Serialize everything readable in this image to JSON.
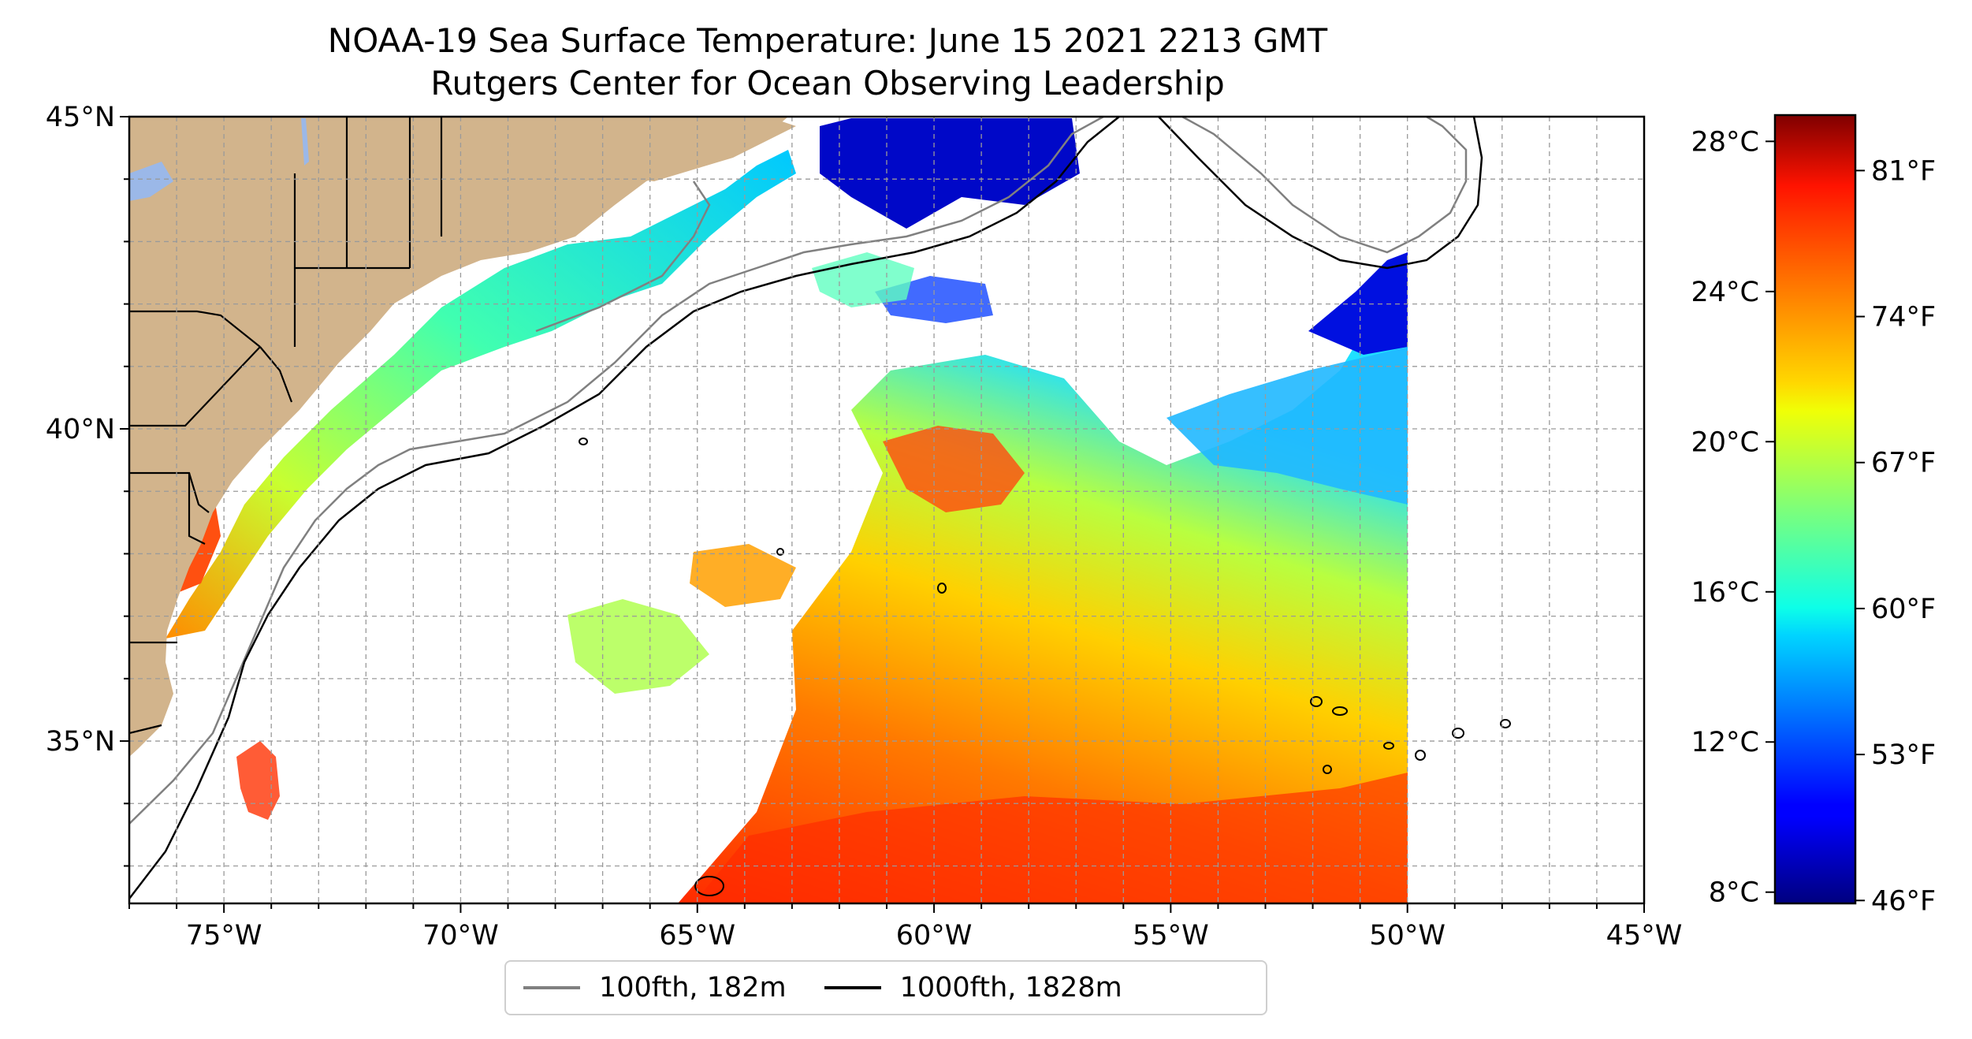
{
  "title": {
    "line1": "NOAA-19 Sea Surface Temperature: June 15 2021 2213 GMT",
    "line2": "Rutgers Center for Ocean Observing Leadership"
  },
  "map": {
    "extent": {
      "lon_min": -77,
      "lon_max": -45,
      "lat_min": 32.4,
      "lat_max": 45
    },
    "x_ticks": [
      {
        "value": -75,
        "label": "75°W"
      },
      {
        "value": -70,
        "label": "70°W"
      },
      {
        "value": -65,
        "label": "65°W"
      },
      {
        "value": -60,
        "label": "60°W"
      },
      {
        "value": -55,
        "label": "55°W"
      },
      {
        "value": -50,
        "label": "50°W"
      },
      {
        "value": -45,
        "label": "45°W"
      }
    ],
    "y_ticks": [
      {
        "value": 45,
        "label": "45°N"
      },
      {
        "value": 40,
        "label": "40°N"
      },
      {
        "value": 35,
        "label": "35°N"
      }
    ],
    "gridlines": true,
    "land_color": "#d2b48c",
    "lake_color": "#9bb8e8"
  },
  "colorbar": {
    "colormap": "jet",
    "celsius_ticks": [
      {
        "value": 28,
        "label": "28°C"
      },
      {
        "value": 24,
        "label": "24°C"
      },
      {
        "value": 20,
        "label": "20°C"
      },
      {
        "value": 16,
        "label": "16°C"
      },
      {
        "value": 12,
        "label": "12°C"
      },
      {
        "value": 8,
        "label": "8°C"
      }
    ],
    "fahrenheit_ticks": [
      {
        "value": 81,
        "label": "81°F"
      },
      {
        "value": 74,
        "label": "74°F"
      },
      {
        "value": 67,
        "label": "67°F"
      },
      {
        "value": 60,
        "label": "60°F"
      },
      {
        "value": 53,
        "label": "53°F"
      },
      {
        "value": 46,
        "label": "46°F"
      }
    ]
  },
  "legend": {
    "items": [
      {
        "label": "100fth, 182m",
        "color": "#808080"
      },
      {
        "label": "1000fth, 1828m",
        "color": "#000000"
      }
    ]
  }
}
